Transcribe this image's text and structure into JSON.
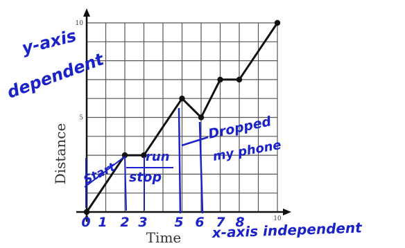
{
  "chart_data": {
    "type": "line",
    "xlabel": "Time",
    "ylabel": "Distance",
    "xlim": [
      0,
      10
    ],
    "ylim": [
      0,
      10
    ],
    "grid": true,
    "x_tick_labels": [
      {
        "value": 0,
        "text": "0"
      },
      {
        "value": 10,
        "text": "10"
      }
    ],
    "y_tick_labels": [
      {
        "value": 5,
        "text": "5"
      },
      {
        "value": 10,
        "text": "10"
      }
    ],
    "points": [
      {
        "x": 0,
        "y": 0
      },
      {
        "x": 2,
        "y": 3
      },
      {
        "x": 3,
        "y": 3
      },
      {
        "x": 5,
        "y": 6
      },
      {
        "x": 6,
        "y": 5
      },
      {
        "x": 7,
        "y": 7
      },
      {
        "x": 8,
        "y": 7
      },
      {
        "x": 10,
        "y": 10
      }
    ]
  },
  "annotations": {
    "y_axis_note_line1": "y-axis",
    "y_axis_note_line2": "dependent",
    "x_axis_note": "x-axis independent",
    "segment_start": "Start",
    "segment_stop": "stop",
    "segment_run": "run",
    "segment_dropped": "Dropped",
    "segment_dropped_2": "my phone",
    "hand_ticks": [
      "0",
      "1",
      "2",
      "3",
      "5",
      "6",
      "7",
      "8"
    ]
  },
  "colors": {
    "ink": "#1a22c8",
    "line": "#111111",
    "grid": "#555555"
  }
}
